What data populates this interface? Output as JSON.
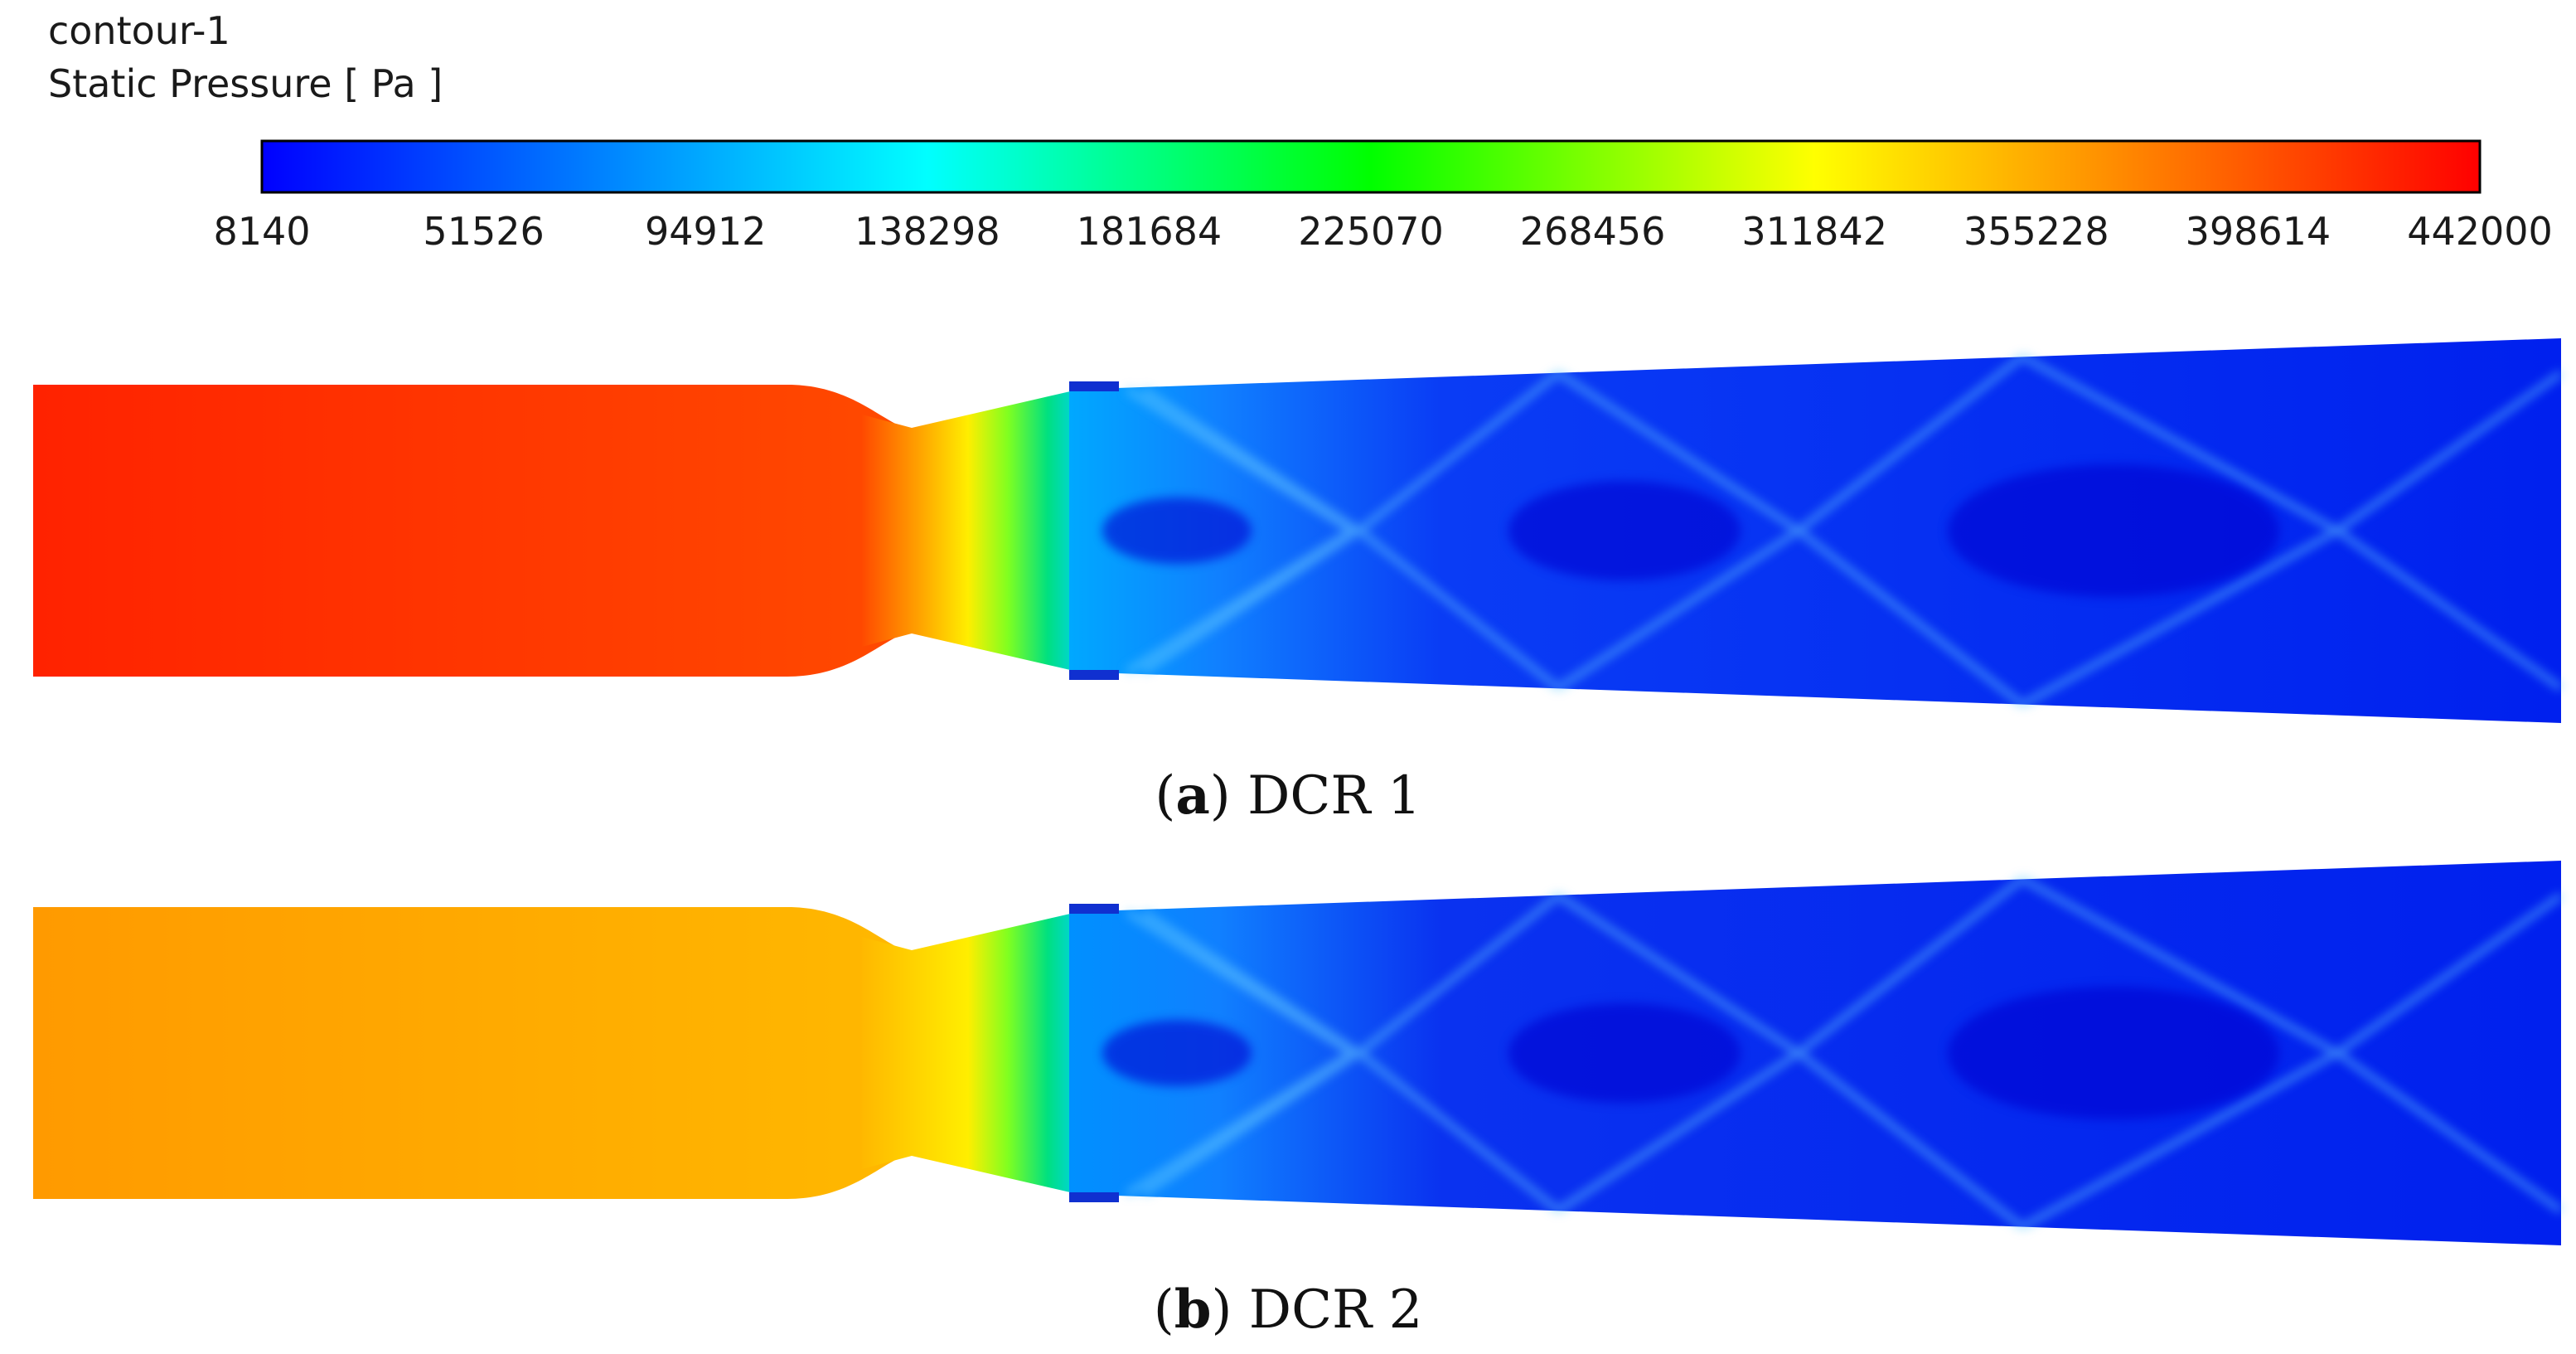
{
  "legend": {
    "name": "contour-1",
    "quantity": "Static Pressure [ Pa ]",
    "ticks": [
      "8140",
      "51526",
      "94912",
      "138298",
      "181684",
      "225070",
      "268456",
      "311842",
      "355228",
      "398614",
      "442000"
    ],
    "colormap": [
      "#0000ff",
      "#0055ff",
      "#00aaff",
      "#00ffff",
      "#00ff80",
      "#00ff00",
      "#80ff00",
      "#ffff00",
      "#ffaa00",
      "#ff5500",
      "#ff0000"
    ]
  },
  "panels": [
    {
      "id": "a",
      "caption_letter": "a",
      "caption_text": "DCR 1",
      "inlet_color_start": "#ff2200",
      "inlet_color_end": "#ff4a00",
      "jet_color": "#00a8ff",
      "field_color": "#0a3cf5"
    },
    {
      "id": "b",
      "caption_letter": "b",
      "caption_text": "DCR 2",
      "inlet_color_start": "#ff9a00",
      "inlet_color_end": "#ffb800",
      "jet_color": "#0090ff",
      "field_color": "#0a32f0"
    }
  ]
}
